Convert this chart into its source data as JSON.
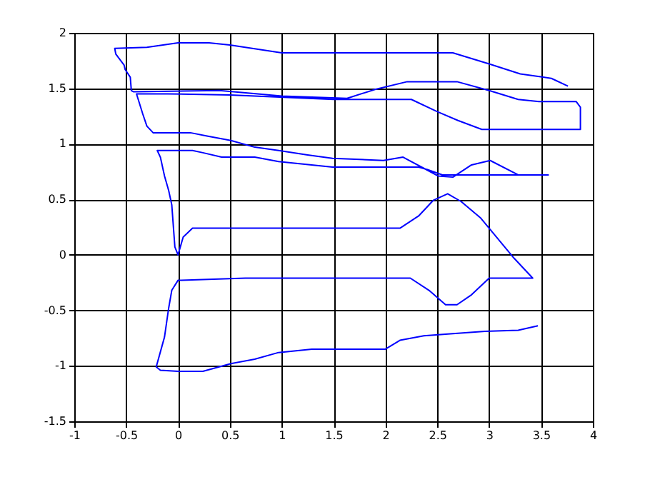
{
  "chart_data": {
    "type": "line",
    "xlim": [
      -1,
      4
    ],
    "ylim": [
      -1.5,
      2
    ],
    "xticks": [
      -1,
      -0.5,
      0,
      0.5,
      1,
      1.5,
      2,
      2.5,
      3,
      3.5,
      4
    ],
    "yticks": [
      -1.5,
      -1,
      -0.5,
      0,
      0.5,
      1,
      1.5,
      2
    ],
    "grid": true,
    "marker": "none",
    "line_style": "solid",
    "series": [
      {
        "color": "#0000ff",
        "x": [
          3.76,
          3.6,
          3.3,
          3.0,
          2.65,
          1.0,
          0.5,
          0.3,
          0,
          -0.3,
          -0.61,
          -0.6,
          -0.52,
          -0.51,
          -0.46,
          -0.45,
          -0.43,
          0.4,
          1.0,
          1.63,
          1.9,
          2.21,
          2.69,
          3.0,
          3.28,
          3.48,
          3.84,
          3.88,
          3.88,
          2.93,
          2.7,
          2.5,
          2.25,
          1.5,
          0.5,
          -0.1,
          -0.4,
          -0.37,
          -0.34,
          -0.3,
          -0.24,
          0.12,
          0.28,
          0.51,
          0.74,
          0.97,
          1.25,
          1.49,
          1.98,
          2.17,
          2.51,
          2.65,
          2.83,
          3.01,
          3.28,
          3.57,
          2.55,
          2.4,
          2.32,
          1.49,
          0.97,
          0.74,
          0.42,
          0.24,
          0.14,
          -0.2,
          -0.17,
          -0.13,
          -0.09,
          -0.06,
          -0.03,
          0,
          0.05,
          0.14,
          2.14,
          2.32,
          2.46,
          2.6,
          2.73,
          2.92,
          3.24,
          3.42,
          3.0,
          2.83,
          2.69,
          2.58,
          2.42,
          2.24,
          0.65,
          0,
          -0.06,
          -0.09,
          -0.13,
          -0.21,
          -0.17,
          0,
          0.24,
          0.51,
          0.74,
          0.97,
          1.29,
          1.49,
          2.0,
          2.14,
          2.37,
          2.65,
          2.96,
          3.28,
          3.47
        ],
        "values": [
          1.52,
          1.59,
          1.63,
          1.72,
          1.82,
          1.82,
          1.89,
          1.91,
          1.91,
          1.87,
          1.86,
          1.81,
          1.71,
          1.67,
          1.6,
          1.48,
          1.47,
          1.48,
          1.43,
          1.41,
          1.49,
          1.56,
          1.56,
          1.48,
          1.4,
          1.38,
          1.38,
          1.33,
          1.13,
          1.13,
          1.21,
          1.29,
          1.4,
          1.4,
          1.44,
          1.45,
          1.45,
          1.36,
          1.27,
          1.16,
          1.1,
          1.1,
          1.07,
          1.03,
          0.97,
          0.94,
          0.9,
          0.87,
          0.85,
          0.88,
          0.71,
          0.7,
          0.81,
          0.85,
          0.72,
          0.72,
          0.72,
          0.77,
          0.79,
          0.79,
          0.84,
          0.88,
          0.88,
          0.92,
          0.94,
          0.94,
          0.88,
          0.71,
          0.58,
          0.45,
          0.07,
          0.0,
          0.16,
          0.24,
          0.24,
          0.35,
          0.49,
          0.55,
          0.48,
          0.33,
          -0.03,
          -0.21,
          -0.21,
          -0.36,
          -0.45,
          -0.45,
          -0.32,
          -0.21,
          -0.21,
          -0.23,
          -0.32,
          -0.48,
          -0.74,
          -1.01,
          -1.04,
          -1.05,
          -1.05,
          -0.98,
          -0.94,
          -0.88,
          -0.85,
          -0.85,
          -0.85,
          -0.77,
          -0.73,
          -0.71,
          -0.69,
          -0.68,
          -0.64
        ]
      }
    ]
  }
}
